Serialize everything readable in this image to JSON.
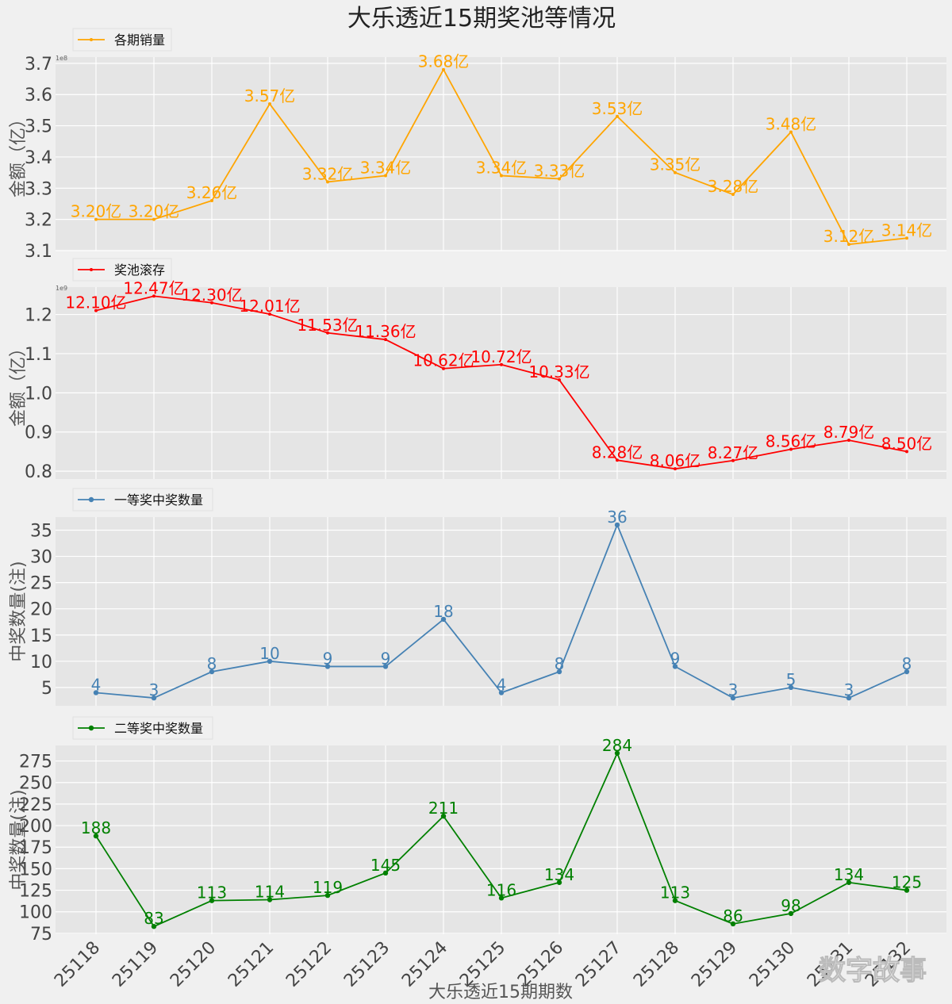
{
  "title": "大乐透近15期奖池等情况",
  "xlabel": "大乐透近15期期数",
  "watermark": "数字故事",
  "categories": [
    "25118",
    "25119",
    "25120",
    "25121",
    "25122",
    "25123",
    "25124",
    "25125",
    "25126",
    "25127",
    "25128",
    "25129",
    "25130",
    "25131",
    "25132"
  ],
  "chart_data": [
    {
      "type": "line",
      "name": "各期销量",
      "legend": "各期销量",
      "ylabel": "金额（亿）",
      "color": "#ffa500",
      "values": [
        3.2,
        3.2,
        3.26,
        3.57,
        3.32,
        3.34,
        3.68,
        3.34,
        3.33,
        3.53,
        3.35,
        3.28,
        3.48,
        3.12,
        3.14
      ],
      "labels": [
        "3.20亿",
        "3.20亿",
        "3.26亿",
        "3.57亿",
        "3.32亿",
        "3.34亿",
        "3.68亿",
        "3.34亿",
        "3.33亿",
        "3.53亿",
        "3.35亿",
        "3.28亿",
        "3.48亿",
        "3.12亿",
        "3.14亿"
      ],
      "yticks": [
        3.1,
        3.2,
        3.3,
        3.4,
        3.5,
        3.6,
        3.7
      ],
      "ytick_labels": [
        "3.1",
        "3.2",
        "3.3",
        "3.4",
        "3.5",
        "3.6",
        "3.7"
      ],
      "ylim": [
        3.1,
        3.72
      ],
      "offset_text": "1e8",
      "marker": "dot-small"
    },
    {
      "type": "line",
      "name": "奖池滚存",
      "legend": "奖池滚存",
      "ylabel": "金额（亿）",
      "color": "#ff0000",
      "values": [
        12.1,
        12.47,
        12.3,
        12.01,
        11.53,
        11.36,
        10.62,
        10.72,
        10.33,
        8.28,
        8.06,
        8.27,
        8.56,
        8.79,
        8.5
      ],
      "labels": [
        "12.10亿",
        "12.47亿",
        "12.30亿",
        "12.01亿",
        "11.53亿",
        "11.36亿",
        "10.62亿",
        "10.72亿",
        "10.33亿",
        "8.28亿",
        "8.06亿",
        "8.27亿",
        "8.56亿",
        "8.79亿",
        "8.50亿"
      ],
      "yticks": [
        0.8,
        0.9,
        1.0,
        1.1,
        1.2
      ],
      "ytick_labels": [
        "0.8",
        "0.9",
        "1.0",
        "1.1",
        "1.2"
      ],
      "ylim": [
        0.78,
        1.27
      ],
      "value_scale": 0.1,
      "offset_text": "1e9",
      "marker": "dot-small"
    },
    {
      "type": "line",
      "name": "一等奖中奖数量",
      "legend": "一等奖中奖数量",
      "ylabel": "中奖数量(注)",
      "color": "#4682b4",
      "values": [
        4,
        3,
        8,
        10,
        9,
        9,
        18,
        4,
        8,
        36,
        9,
        3,
        5,
        3,
        8
      ],
      "labels": [
        "4",
        "3",
        "8",
        "10",
        "9",
        "9",
        "18",
        "4",
        "8",
        "36",
        "9",
        "3",
        "5",
        "3",
        "8"
      ],
      "yticks": [
        5,
        10,
        15,
        20,
        25,
        30,
        35
      ],
      "ytick_labels": [
        "5",
        "10",
        "15",
        "20",
        "25",
        "30",
        "35"
      ],
      "ylim": [
        1.5,
        37.5
      ],
      "marker": "dot"
    },
    {
      "type": "line",
      "name": "二等奖中奖数量",
      "legend": "二等奖中奖数量",
      "ylabel": "中奖数量(注)",
      "color": "#008000",
      "values": [
        188,
        83,
        113,
        114,
        119,
        145,
        211,
        116,
        134,
        284,
        113,
        86,
        98,
        134,
        125
      ],
      "labels": [
        "188",
        "83",
        "113",
        "114",
        "119",
        "145",
        "211",
        "116",
        "134",
        "284",
        "113",
        "86",
        "98",
        "134",
        "125"
      ],
      "yticks": [
        75,
        100,
        125,
        150,
        175,
        200,
        225,
        250,
        275
      ],
      "ytick_labels": [
        "75",
        "100",
        "125",
        "150",
        "175",
        "200",
        "225",
        "250",
        "275"
      ],
      "ylim": [
        74,
        293
      ],
      "marker": "dot"
    }
  ]
}
